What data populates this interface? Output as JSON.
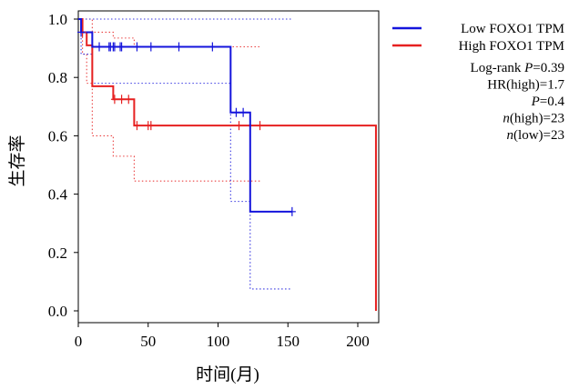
{
  "chart_data": {
    "type": "line",
    "chart_kind": "kaplan-meier survival curve",
    "xlabel": "时间(月)",
    "ylabel": "生存率",
    "xlim": [
      0,
      215
    ],
    "ylim": [
      0,
      1.03
    ],
    "x_ticks": [
      "0",
      "50",
      "100",
      "150",
      "200"
    ],
    "y_ticks": [
      "0.0",
      "0.2",
      "0.4",
      "0.6",
      "0.8",
      "1.0"
    ],
    "x_tick_values": [
      0,
      50,
      100,
      150,
      200
    ],
    "y_tick_values": [
      0,
      0.2,
      0.4,
      0.6,
      0.8,
      1.0
    ],
    "legend_placement": "right, outside plot",
    "series": [
      {
        "name": "Low FOXO1 TPM",
        "color": "#1414dc",
        "step_x": [
          0,
          2,
          5,
          10,
          109,
          123,
          153
        ],
        "step_y": [
          1.0,
          0.955,
          0.955,
          0.905,
          0.68,
          0.34,
          0.34
        ],
        "censor_x": [
          2,
          15,
          22,
          23,
          25,
          26,
          30,
          31,
          42,
          52,
          72,
          96,
          113,
          118,
          153
        ],
        "censor_y": [
          0.955,
          0.905,
          0.905,
          0.905,
          0.905,
          0.905,
          0.905,
          0.905,
          0.905,
          0.905,
          0.905,
          0.905,
          0.68,
          0.68,
          0.34
        ],
        "ci_upper_x": [
          0,
          153
        ],
        "ci_upper_y": [
          1.0,
          1.0
        ],
        "ci_lower_x": [
          0,
          2,
          5,
          10,
          109,
          123,
          153
        ],
        "ci_lower_y": [
          1.0,
          0.88,
          0.88,
          0.78,
          0.375,
          0.075,
          0.075
        ]
      },
      {
        "name": "High FOXO1 TPM",
        "color": "#e62020",
        "step_x": [
          0,
          3,
          6,
          10,
          25,
          40,
          213
        ],
        "step_y": [
          1.0,
          0.955,
          0.91,
          0.77,
          0.725,
          0.635,
          0.0
        ],
        "censor_x": [
          3,
          26,
          31,
          36,
          42,
          50,
          52,
          115,
          130
        ],
        "censor_y": [
          0.955,
          0.725,
          0.725,
          0.725,
          0.635,
          0.635,
          0.635,
          0.635,
          0.635
        ],
        "ci_upper_x": [
          0,
          6,
          10,
          25,
          40,
          130
        ],
        "ci_upper_y": [
          1.0,
          1.0,
          0.955,
          0.935,
          0.905,
          0.905
        ],
        "ci_lower_x": [
          0,
          3,
          6,
          10,
          25,
          40,
          130
        ],
        "ci_lower_y": [
          1.0,
          0.88,
          0.78,
          0.6,
          0.53,
          0.445,
          0.445
        ]
      }
    ],
    "annotations": [
      {
        "prefix": "Log-rank ",
        "italic": "P",
        "suffix": "=0.39"
      },
      {
        "prefix": "HR(high)=1.7",
        "italic": "",
        "suffix": ""
      },
      {
        "prefix": "",
        "italic": "P",
        "suffix": "=0.4"
      },
      {
        "prefix": "",
        "italic": "n",
        "suffix": "(high)=23"
      },
      {
        "prefix": "",
        "italic": "n",
        "suffix": "(low)=23"
      }
    ]
  }
}
